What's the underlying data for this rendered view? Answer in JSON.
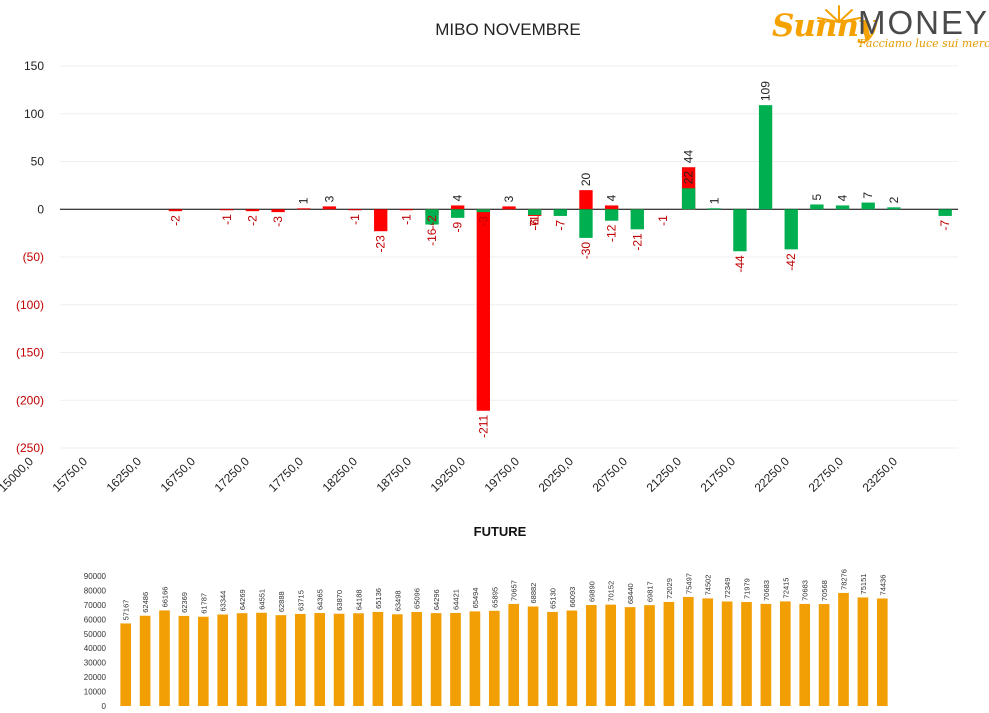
{
  "logo": {
    "word1": "Sunny",
    "word2": "MONEY",
    "tagline": "Facciamo luce sui mercati"
  },
  "chart_data": [
    {
      "type": "bar",
      "title": "MIBO NOVEMBRE",
      "x": [
        15000,
        15250,
        15500,
        15750,
        16000,
        16250,
        16500,
        16750,
        17000,
        17250,
        17500,
        17750,
        18000,
        18250,
        18500,
        18750,
        19000,
        19250,
        19500,
        19750,
        20000,
        20250,
        20500,
        20750,
        21000,
        21250,
        21500,
        21750,
        22000,
        22250,
        22500,
        22750,
        23000,
        23250,
        23500
      ],
      "x_tick_labels": [
        "15000,0",
        "15750,0",
        "16250,0",
        "16750,0",
        "17250,0",
        "17750,0",
        "18250,0",
        "18750,0",
        "19250,0",
        "19750,0",
        "20250,0",
        "20750,0",
        "21250,0",
        "21750,0",
        "22250,0",
        "22750,0",
        "23250,0"
      ],
      "y_tick_labels": [
        "150",
        "100",
        "50",
        "0",
        "(50)",
        "(100)",
        "(150)",
        "(200)",
        "(250)"
      ],
      "ylim": [
        -250,
        150
      ],
      "series": [
        {
          "color": "#ff0000",
          "points": [
            {
              "x": 16000,
              "y": -2
            },
            {
              "x": 16500,
              "y": -1
            },
            {
              "x": 16750,
              "y": -2
            },
            {
              "x": 17000,
              "y": -3
            },
            {
              "x": 17250,
              "y": 1
            },
            {
              "x": 17500,
              "y": 3
            },
            {
              "x": 17750,
              "y": -1
            },
            {
              "x": 18000,
              "y": -23
            },
            {
              "x": 18250,
              "y": -1
            },
            {
              "x": 18500,
              "y": -6
            },
            {
              "x": 18750,
              "y": 4
            },
            {
              "x": 19000,
              "y": -211
            },
            {
              "x": 19250,
              "y": 3
            },
            {
              "x": 19500,
              "y": -7
            },
            {
              "x": 20000,
              "y": 20
            },
            {
              "x": 20250,
              "y": 4
            },
            {
              "x": 20500,
              "y": -3
            },
            {
              "x": 21000,
              "y": 44
            }
          ]
        },
        {
          "color": "#00b050",
          "points": [
            {
              "x": 18500,
              "y": -16
            },
            {
              "x": 18750,
              "y": -9
            },
            {
              "x": 19000,
              "y": -3
            },
            {
              "x": 19500,
              "y": -6
            },
            {
              "x": 19750,
              "y": -7
            },
            {
              "x": 20000,
              "y": -30
            },
            {
              "x": 20250,
              "y": -12
            },
            {
              "x": 20500,
              "y": -21
            },
            {
              "x": 21000,
              "y": 22
            },
            {
              "x": 21250,
              "y": 1
            },
            {
              "x": 21500,
              "y": -44
            },
            {
              "x": 21750,
              "y": 109
            },
            {
              "x": 22000,
              "y": -42
            },
            {
              "x": 22250,
              "y": 5
            },
            {
              "x": 22500,
              "y": 4
            },
            {
              "x": 22750,
              "y": 7
            },
            {
              "x": 23000,
              "y": 2
            },
            {
              "x": 23500,
              "y": -7
            }
          ]
        }
      ],
      "extra_labels": [
        {
          "x": 18500,
          "text": "-2",
          "color": "#c00000"
        },
        {
          "x": 19500,
          "text": "-1",
          "color": "#c00000"
        },
        {
          "x": 20750,
          "text": "-1",
          "color": "#c00000"
        }
      ],
      "grid": true,
      "legend": "none",
      "colors": {
        "negative_label": "#c00000",
        "positive_label": "#222222"
      }
    },
    {
      "type": "bar",
      "title": "FUTURE",
      "values": [
        57167,
        62486,
        66166,
        62369,
        61787,
        63344,
        64269,
        64551,
        62888,
        63715,
        64365,
        63870,
        64188,
        65136,
        63498,
        65096,
        64296,
        64421,
        65494,
        65895,
        70657,
        68882,
        65130,
        66093,
        69890,
        70152,
        68440,
        69817,
        72029,
        75497,
        74502,
        72349,
        71979,
        70683,
        72415,
        70683,
        70568,
        78276,
        75151,
        74436
      ],
      "y_tick_labels": [
        "90000",
        "80000",
        "70000",
        "60000",
        "50000",
        "40000",
        "30000",
        "20000",
        "10000",
        "0"
      ],
      "ylim": [
        0,
        90000
      ],
      "color": "#f29f05",
      "legend": "none"
    }
  ]
}
